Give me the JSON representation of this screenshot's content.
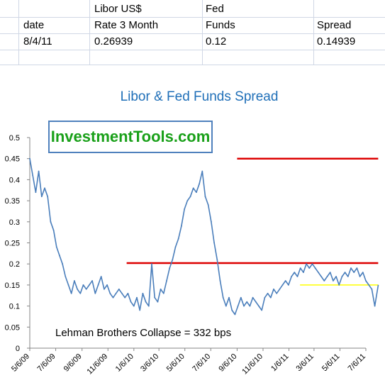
{
  "sheet": {
    "header_row1": {
      "b": "Libor US$",
      "c": "Fed"
    },
    "header_row2": {
      "a": "date",
      "b": "Rate 3 Month",
      "c": "Funds",
      "d": "Spread"
    },
    "values": {
      "a": "8/4/11",
      "b": "0.26939",
      "c": "0.12",
      "d": "0.14939"
    }
  },
  "watermark": "InvestmentTools.com",
  "colors": {
    "series": "#4a7ebb",
    "red_lines": "#dd0000",
    "yellow_line": "#ffff00",
    "title": "#1f6fb8",
    "watermark_text": "#19a019",
    "watermark_border": "#4f81bd"
  },
  "chart_data": {
    "type": "line",
    "title": "Libor & Fed Funds Spread",
    "annotation": "Lehman Brothers Collapse = 332 bps",
    "xlabel": "",
    "ylabel": "",
    "ylim": [
      0,
      0.5
    ],
    "yticks": [
      "0",
      "0.05",
      "0.1",
      "0.15",
      "0.2",
      "0.25",
      "0.3",
      "0.35",
      "0.4",
      "0.45",
      "0.5"
    ],
    "xtick_labels": [
      "5/6/09",
      "7/6/09",
      "9/6/09",
      "11/6/09",
      "1/6/10",
      "3/6/10",
      "5/6/10",
      "7/6/10",
      "9/6/10",
      "11/6/10",
      "1/6/11",
      "3/6/11",
      "5/6/11",
      "7/6/11"
    ],
    "x_range": [
      "5/6/09",
      "7/6/11"
    ],
    "grid": false,
    "series": [
      {
        "name": "",
        "x": [
          "5/6/09",
          "5/13/09",
          "5/20/09",
          "5/27/09",
          "6/3/09",
          "6/10/09",
          "6/17/09",
          "6/24/09",
          "7/1/09",
          "7/8/09",
          "7/15/09",
          "7/22/09",
          "7/29/09",
          "8/5/09",
          "8/12/09",
          "8/19/09",
          "8/26/09",
          "9/2/09",
          "9/9/09",
          "9/16/09",
          "9/23/09",
          "9/30/09",
          "10/7/09",
          "10/14/09",
          "10/21/09",
          "10/28/09",
          "11/4/09",
          "11/11/09",
          "11/18/09",
          "11/25/09",
          "12/2/09",
          "12/9/09",
          "12/16/09",
          "12/23/09",
          "12/30/09",
          "1/6/10",
          "1/13/10",
          "1/20/10",
          "1/27/10",
          "2/3/10",
          "2/10/10",
          "2/17/10",
          "2/24/10",
          "3/3/10",
          "3/10/10",
          "3/17/10",
          "3/24/10",
          "3/31/10",
          "4/7/10",
          "4/14/10",
          "4/21/10",
          "4/28/10",
          "5/5/10",
          "5/12/10",
          "5/19/10",
          "5/26/10",
          "6/2/10",
          "6/9/10",
          "6/16/10",
          "6/23/10",
          "6/30/10",
          "7/7/10",
          "7/14/10",
          "7/21/10",
          "7/28/10",
          "8/4/10",
          "8/11/10",
          "8/18/10",
          "8/25/10",
          "9/1/10",
          "9/8/10",
          "9/15/10",
          "9/22/10",
          "9/29/10",
          "10/6/10",
          "10/13/10",
          "10/20/10",
          "10/27/10",
          "11/3/10",
          "11/10/10",
          "11/17/10",
          "11/24/10",
          "12/1/10",
          "12/8/10",
          "12/15/10",
          "12/22/10",
          "12/29/10",
          "1/5/11",
          "1/12/11",
          "1/19/11",
          "1/26/11",
          "2/2/11",
          "2/9/11",
          "2/16/11",
          "2/23/11",
          "3/2/11",
          "3/9/11",
          "3/16/11",
          "3/23/11",
          "3/30/11",
          "4/6/11",
          "4/13/11",
          "4/20/11",
          "4/27/11",
          "5/4/11",
          "5/11/11",
          "5/18/11",
          "5/25/11",
          "6/1/11",
          "6/8/11",
          "6/15/11",
          "6/22/11",
          "6/29/11",
          "7/6/11",
          "7/13/11",
          "7/20/11",
          "7/27/11",
          "8/4/11"
        ],
        "values": [
          0.45,
          0.41,
          0.37,
          0.42,
          0.36,
          0.38,
          0.36,
          0.3,
          0.28,
          0.24,
          0.22,
          0.2,
          0.17,
          0.15,
          0.13,
          0.16,
          0.14,
          0.13,
          0.15,
          0.14,
          0.15,
          0.16,
          0.13,
          0.15,
          0.17,
          0.14,
          0.15,
          0.13,
          0.12,
          0.13,
          0.14,
          0.13,
          0.12,
          0.13,
          0.11,
          0.1,
          0.12,
          0.09,
          0.13,
          0.11,
          0.1,
          0.2,
          0.12,
          0.11,
          0.14,
          0.13,
          0.16,
          0.19,
          0.21,
          0.24,
          0.26,
          0.29,
          0.33,
          0.35,
          0.36,
          0.38,
          0.37,
          0.39,
          0.42,
          0.36,
          0.34,
          0.3,
          0.25,
          0.21,
          0.16,
          0.12,
          0.1,
          0.12,
          0.09,
          0.08,
          0.1,
          0.12,
          0.1,
          0.11,
          0.1,
          0.12,
          0.11,
          0.1,
          0.09,
          0.12,
          0.13,
          0.12,
          0.14,
          0.13,
          0.14,
          0.15,
          0.16,
          0.15,
          0.17,
          0.18,
          0.17,
          0.19,
          0.18,
          0.2,
          0.19,
          0.2,
          0.19,
          0.18,
          0.17,
          0.16,
          0.17,
          0.18,
          0.16,
          0.17,
          0.15,
          0.17,
          0.18,
          0.17,
          0.19,
          0.18,
          0.19,
          0.17,
          0.18,
          0.16,
          0.15,
          0.14,
          0.1,
          0.149
        ]
      }
    ],
    "reference_lines": [
      {
        "color": "red",
        "y": 0.45,
        "from": "9/6/10",
        "to": "8/4/11"
      },
      {
        "color": "red",
        "y": 0.202,
        "from": "12/20/09",
        "to": "8/4/11"
      },
      {
        "color": "yellow",
        "y": 0.15,
        "from": "2/1/11",
        "to": "8/4/11"
      }
    ]
  }
}
